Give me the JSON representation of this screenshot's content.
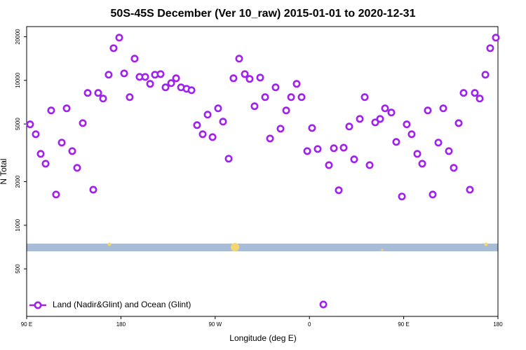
{
  "chart_data": {
    "type": "scatter",
    "title": "50S-45S December (Ver 10_raw)   2015-01-01 to 2020-12-31",
    "x_label": "Longitude (deg E)",
    "y_label": "N Total",
    "log_y": true,
    "xlim": [
      90,
      540
    ],
    "ylim": [
      235,
      23500
    ],
    "xticks": [
      {
        "value": 90,
        "label": "90 E"
      },
      180,
      {
        "value": 270,
        "label": "90 W"
      },
      {
        "value": 360,
        "label": "0"
      },
      {
        "value": 450,
        "label": "90 E"
      },
      {
        "value": 540,
        "label": "180"
      }
    ],
    "yticks": [
      500,
      1000,
      2000,
      5000,
      10000,
      20000
    ],
    "legend_position": "lower left",
    "series": [
      {
        "name": "Land (Nadir&Glint) and Ocean (Glint)",
        "color": "#a020f0",
        "x": [
          93.3,
          98.7,
          103.4,
          108.1,
          113.4,
          118.1,
          123.5,
          128.2,
          133.5,
          138.2,
          143.6,
          148.3,
          153.6,
          158.3,
          163.0,
          168.3,
          173.0,
          178.4,
          183.1,
          188.4,
          193.1,
          197.8,
          203.2,
          207.9,
          212.5,
          217.9,
          222.6,
          228.0,
          232.7,
          237.4,
          242.7,
          247.4,
          252.7,
          258.1,
          262.8,
          267.5,
          272.8,
          277.5,
          282.9,
          287.5,
          292.9,
          298.3,
          302.9,
          307.6,
          313.0,
          317.7,
          322.4,
          327.7,
          332.4,
          337.8,
          342.5,
          347.8,
          352.5,
          357.9,
          362.5,
          367.9,
          373.3,
          378.6,
          383.3,
          388.0,
          392.7,
          398.0,
          402.7,
          408.1,
          412.8,
          417.5,
          422.8,
          427.5,
          432.2,
          438.2,
          442.9,
          448.3,
          452.9,
          457.6,
          463.0,
          467.7,
          473.0,
          477.7,
          483.1,
          487.8,
          493.1,
          497.8,
          502.5,
          507.2,
          513.2,
          517.9,
          522.6,
          528.0,
          532.6,
          538.0
        ],
        "values": [
          4970,
          4250,
          3110,
          2660,
          6200,
          1630,
          3720,
          6410,
          3250,
          2490,
          5070,
          8190,
          1760,
          8190,
          7490,
          10940,
          16680,
          19720,
          11170,
          7660,
          14120,
          10570,
          10570,
          9460,
          10940,
          11050,
          8950,
          9570,
          10340,
          8950,
          8750,
          8550,
          4910,
          4250,
          5800,
          4060,
          6410,
          5190,
          2880,
          10340,
          14120,
          11050,
          10230,
          6630,
          10450,
          7660,
          3970,
          8950,
          4640,
          6200,
          7660,
          9460,
          7660,
          3250,
          4690,
          3360,
          284,
          2600,
          3400,
          1745,
          3430,
          4800,
          2850,
          5420,
          7660,
          2600,
          5130,
          5420,
          6410,
          6000,
          3760,
          1580,
          4970,
          4250,
          3110,
          2660,
          6200,
          1630,
          3720,
          6410,
          3250,
          2490,
          5070,
          8190,
          1760,
          8190,
          7490,
          10940,
          16680,
          19720
        ]
      }
    ]
  }
}
